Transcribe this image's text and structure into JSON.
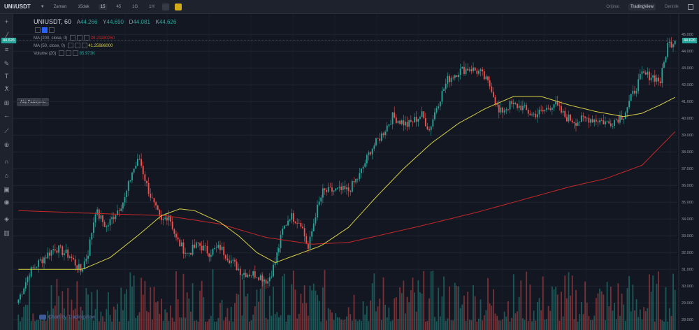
{
  "header": {
    "symbol": "UNI/USDT",
    "timeframes": [
      "Zaman",
      "15dak",
      "15",
      "45",
      "1G",
      "1H"
    ],
    "active_timeframe": "15",
    "right_tabs": [
      "Orijinal",
      "TradingView",
      "Derinlik"
    ],
    "active_right_tab": "TradingView"
  },
  "toolbar": {
    "icons": [
      "crosshair-icon",
      "trend-line-icon",
      "fib-icon",
      "brush-icon",
      "text-icon",
      "pattern-icon",
      "measure-icon",
      "back-arrow-icon",
      "ruler-icon",
      "zoom-icon",
      "magnet-icon",
      "lock-draw-icon",
      "lock-icon",
      "eye-icon",
      "layers-icon",
      "trash-icon"
    ],
    "tooltip": "Alış Pozisyonu"
  },
  "legend": {
    "title": "UNIUSDT, 60",
    "open_label": "A",
    "open": "44.266",
    "high_label": "Y",
    "high": "44.690",
    "low_label": "D",
    "low": "44.081",
    "close_label": "K",
    "close": "44.626",
    "ind1_name": "MA (200, close, 0)",
    "ind1_value": "39.21180250",
    "ind2_name": "MA (50, close, 0)",
    "ind2_value": "41.25986000",
    "ind3_name": "Volume (20)",
    "ind3_value": "85.973K"
  },
  "price_tag": "44.626",
  "watermark": "Chart by TradingView",
  "colors": {
    "up": "#26a69a",
    "down": "#ef5350",
    "ma200": "#c62828",
    "ma50": "#d6cf45",
    "bg": "#131722"
  },
  "chart_data": {
    "type": "candlestick",
    "y_axis_ticks": [
      "28.000",
      "29.000",
      "30.000",
      "31.000",
      "32.000",
      "33.000",
      "34.000",
      "35.000",
      "36.000",
      "37.000",
      "38.000",
      "39.000",
      "40.000",
      "41.000",
      "42.000",
      "43.000",
      "44.000",
      "45.000"
    ],
    "ylim": [
      27.8,
      45.3
    ],
    "last_price": 44.626,
    "close_anchors": [
      [
        0,
        29.2
      ],
      [
        6,
        30.8
      ],
      [
        12,
        31.5
      ],
      [
        20,
        32.3
      ],
      [
        28,
        31.8
      ],
      [
        34,
        30.9
      ],
      [
        38,
        32.0
      ],
      [
        42,
        34.5
      ],
      [
        48,
        33.5
      ],
      [
        52,
        34.2
      ],
      [
        58,
        35.2
      ],
      [
        62,
        36.8
      ],
      [
        66,
        37.6
      ],
      [
        70,
        36.0
      ],
      [
        74,
        34.8
      ],
      [
        78,
        33.8
      ],
      [
        82,
        34.3
      ],
      [
        86,
        32.8
      ],
      [
        92,
        31.9
      ],
      [
        98,
        32.5
      ],
      [
        104,
        32.0
      ],
      [
        110,
        32.3
      ],
      [
        116,
        31.5
      ],
      [
        122,
        30.8
      ],
      [
        130,
        30.7
      ],
      [
        136,
        30.3
      ],
      [
        140,
        31.4
      ],
      [
        144,
        33.3
      ],
      [
        148,
        34.2
      ],
      [
        154,
        33.8
      ],
      [
        158,
        32.2
      ],
      [
        162,
        34.3
      ],
      [
        166,
        35.6
      ],
      [
        172,
        35.7
      ],
      [
        180,
        35.7
      ],
      [
        186,
        36.6
      ],
      [
        192,
        38.1
      ],
      [
        198,
        39.0
      ],
      [
        204,
        40.1
      ],
      [
        212,
        39.6
      ],
      [
        220,
        40.2
      ],
      [
        224,
        39.3
      ],
      [
        228,
        40.7
      ],
      [
        234,
        42.3
      ],
      [
        240,
        42.8
      ],
      [
        246,
        43.0
      ],
      [
        252,
        42.7
      ],
      [
        258,
        41.8
      ],
      [
        262,
        40.3
      ],
      [
        268,
        40.8
      ],
      [
        274,
        40.7
      ],
      [
        280,
        40.2
      ],
      [
        286,
        40.4
      ],
      [
        292,
        40.9
      ],
      [
        298,
        40.1
      ],
      [
        304,
        39.8
      ],
      [
        310,
        40.0
      ],
      [
        316,
        39.9
      ],
      [
        322,
        39.7
      ],
      [
        330,
        40.2
      ],
      [
        334,
        41.2
      ],
      [
        340,
        42.6
      ],
      [
        346,
        42.5
      ],
      [
        350,
        42.2
      ],
      [
        354,
        44.4
      ],
      [
        358,
        44.6
      ]
    ],
    "ma200": {
      "name": "MA (200, close, 0)",
      "anchors": [
        [
          0,
          34.5
        ],
        [
          50,
          34.3
        ],
        [
          80,
          34.2
        ],
        [
          110,
          33.7
        ],
        [
          135,
          32.9
        ],
        [
          160,
          32.5
        ],
        [
          180,
          32.6
        ],
        [
          200,
          33.1
        ],
        [
          220,
          33.6
        ],
        [
          250,
          34.4
        ],
        [
          280,
          35.3
        ],
        [
          300,
          35.9
        ],
        [
          320,
          36.4
        ],
        [
          340,
          37.2
        ],
        [
          358,
          39.2
        ]
      ]
    },
    "ma50": {
      "name": "MA (50, close, 0)",
      "anchors": [
        [
          0,
          31.0
        ],
        [
          20,
          31.0
        ],
        [
          35,
          31.0
        ],
        [
          50,
          31.7
        ],
        [
          65,
          33.0
        ],
        [
          78,
          34.2
        ],
        [
          88,
          34.6
        ],
        [
          96,
          34.5
        ],
        [
          110,
          33.8
        ],
        [
          120,
          33.0
        ],
        [
          130,
          32.0
        ],
        [
          140,
          31.4
        ],
        [
          150,
          31.8
        ],
        [
          165,
          32.4
        ],
        [
          180,
          33.5
        ],
        [
          195,
          35.3
        ],
        [
          210,
          37.0
        ],
        [
          225,
          38.5
        ],
        [
          240,
          39.7
        ],
        [
          255,
          40.6
        ],
        [
          270,
          41.3
        ],
        [
          285,
          41.3
        ],
        [
          300,
          40.8
        ],
        [
          315,
          40.4
        ],
        [
          330,
          40.1
        ],
        [
          340,
          40.3
        ],
        [
          350,
          40.8
        ],
        [
          358,
          41.25
        ]
      ]
    },
    "candle_count": 359
  }
}
